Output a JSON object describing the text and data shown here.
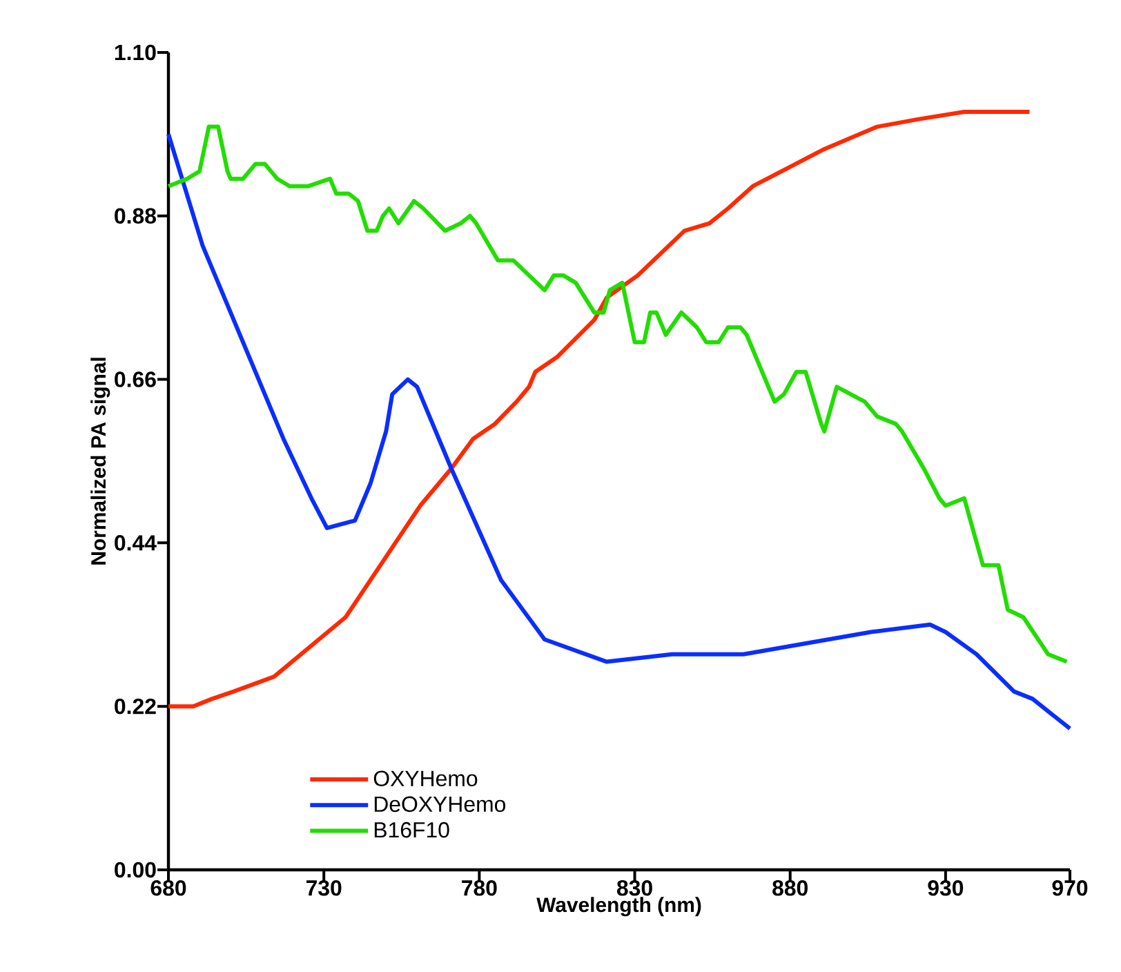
{
  "chart_data": {
    "type": "line",
    "xlabel": "Wavelength (nm)",
    "ylabel": "Normalized PA signal",
    "xlim": [
      680,
      970
    ],
    "xticks": [
      680,
      730,
      780,
      830,
      880,
      930,
      970
    ],
    "ylim": [
      0,
      1.1
    ],
    "yticks": [
      {
        "value": 0,
        "label": "0.00"
      },
      {
        "value": 0.22,
        "label": "0.22"
      },
      {
        "value": 0.44,
        "label": "0.44"
      },
      {
        "value": 0.66,
        "label": "0.66"
      },
      {
        "value": 0.88,
        "label": "0.88"
      },
      {
        "value": 1.1,
        "label": "1.10"
      }
    ],
    "grid": false,
    "legend": "bottom left",
    "marker": "none",
    "line_style": "solid",
    "series": [
      {
        "name": "OXYHemo",
        "color": "#ff2a00",
        "x": [
          680,
          688,
          694,
          701,
          714,
          737,
          761,
          771,
          778,
          785,
          792,
          796,
          798,
          805,
          817,
          821,
          831,
          846,
          854,
          860,
          868,
          891,
          908,
          921,
          936,
          957
        ],
        "values": [
          0.22,
          0.22,
          0.23,
          0.24,
          0.26,
          0.34,
          0.49,
          0.54,
          0.58,
          0.6,
          0.63,
          0.65,
          0.67,
          0.69,
          0.74,
          0.77,
          0.8,
          0.86,
          0.87,
          0.89,
          0.92,
          0.97,
          1.0,
          1.01,
          1.02,
          1.02
        ]
      },
      {
        "name": "DeOXYHemo",
        "color": "#0a2eff",
        "x": [
          680,
          691,
          704,
          717,
          726,
          731,
          740,
          745,
          750,
          752,
          757,
          760,
          771,
          787,
          801,
          821,
          842,
          865,
          906,
          925,
          930,
          940,
          952,
          958,
          970
        ],
        "values": [
          0.99,
          0.84,
          0.71,
          0.58,
          0.5,
          0.46,
          0.47,
          0.52,
          0.59,
          0.64,
          0.66,
          0.65,
          0.54,
          0.39,
          0.31,
          0.28,
          0.29,
          0.29,
          0.32,
          0.33,
          0.32,
          0.29,
          0.24,
          0.23,
          0.19
        ]
      },
      {
        "name": "B16F10",
        "color": "#22dd00",
        "x": [
          680,
          686,
          690,
          693,
          696,
          699,
          700,
          704,
          708,
          711,
          715,
          719,
          725,
          732,
          734,
          738,
          741,
          744,
          747,
          749,
          751,
          754,
          759,
          762,
          769,
          774,
          777,
          779,
          786,
          791,
          801,
          804,
          807,
          811,
          817,
          820,
          822,
          826,
          830,
          833,
          835,
          837,
          840,
          845,
          850,
          853,
          857,
          860,
          864,
          866,
          875,
          878,
          882,
          885,
          890,
          891,
          895,
          904,
          908,
          914,
          916,
          923,
          928,
          930,
          936,
          942,
          946,
          947,
          950,
          955,
          963,
          969
        ],
        "values": [
          0.92,
          0.93,
          0.94,
          1.0,
          1.0,
          0.94,
          0.93,
          0.93,
          0.95,
          0.95,
          0.93,
          0.92,
          0.92,
          0.93,
          0.91,
          0.91,
          0.9,
          0.86,
          0.86,
          0.88,
          0.89,
          0.87,
          0.9,
          0.89,
          0.86,
          0.87,
          0.88,
          0.87,
          0.82,
          0.82,
          0.78,
          0.8,
          0.8,
          0.79,
          0.75,
          0.75,
          0.78,
          0.79,
          0.71,
          0.71,
          0.75,
          0.75,
          0.72,
          0.75,
          0.73,
          0.71,
          0.71,
          0.73,
          0.73,
          0.72,
          0.63,
          0.64,
          0.67,
          0.67,
          0.6,
          0.59,
          0.65,
          0.63,
          0.61,
          0.6,
          0.59,
          0.54,
          0.5,
          0.49,
          0.5,
          0.41,
          0.41,
          0.41,
          0.35,
          0.34,
          0.29,
          0.28
        ]
      }
    ]
  }
}
